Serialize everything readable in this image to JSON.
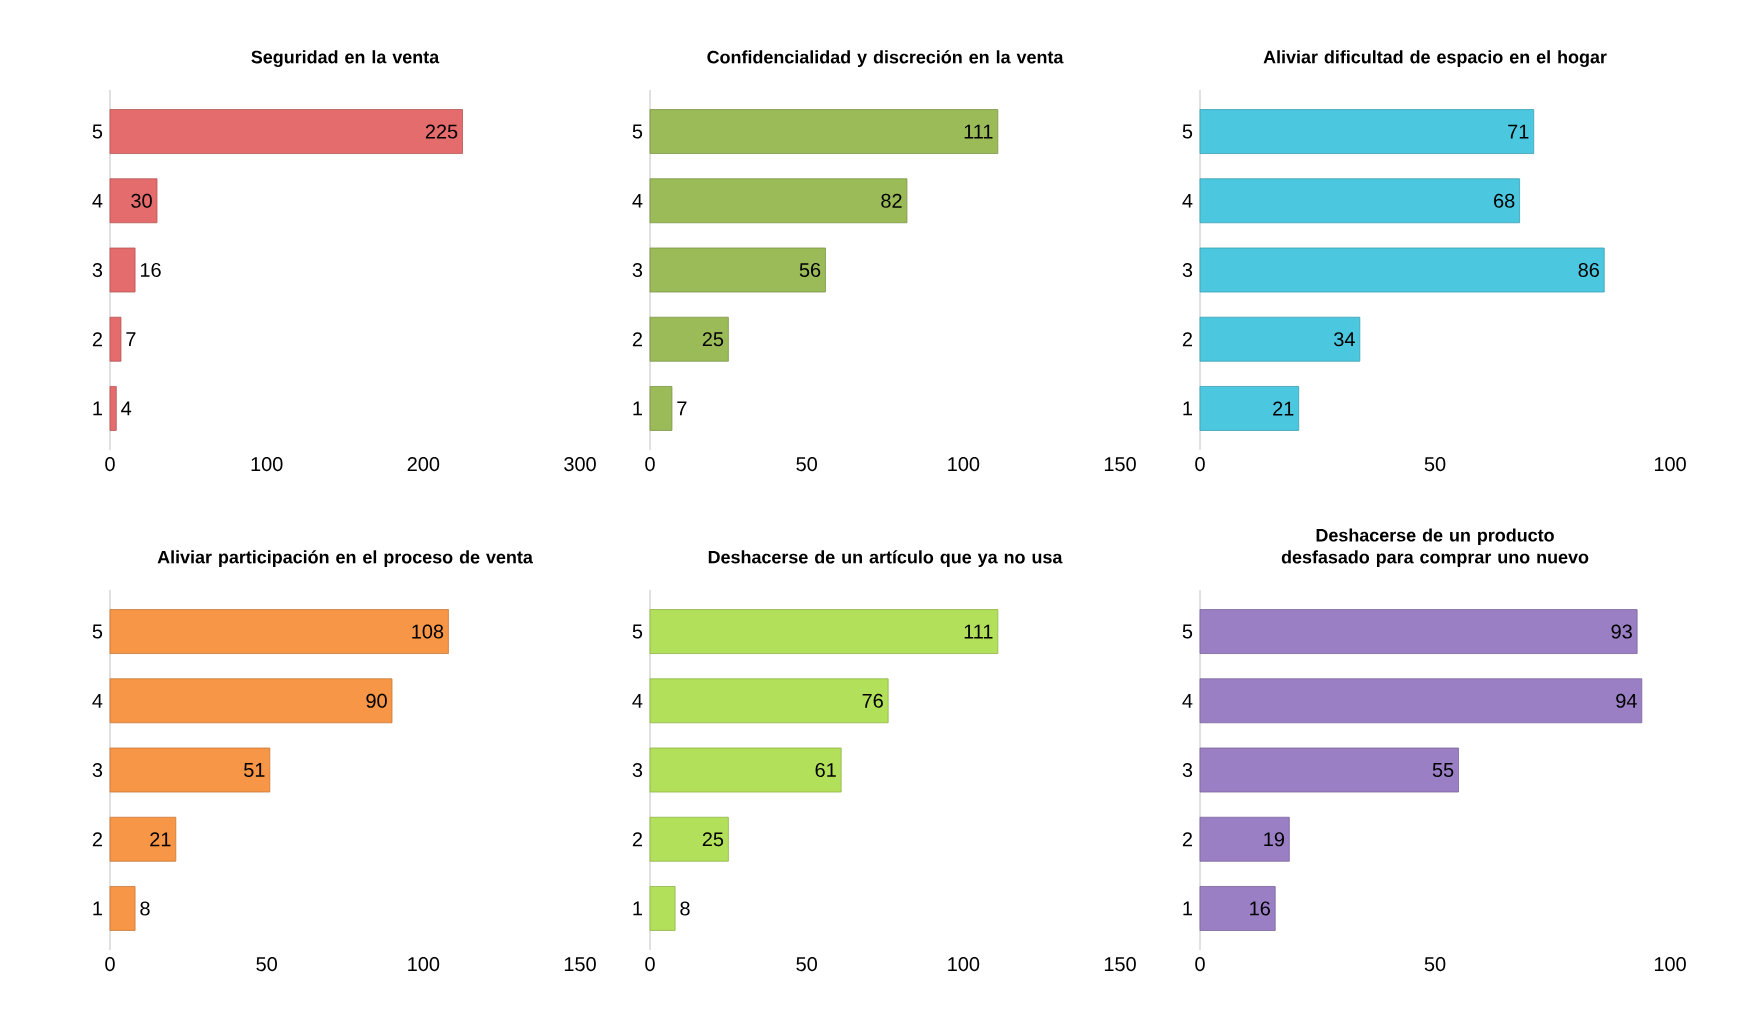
{
  "chart_data": [
    {
      "type": "bar",
      "orientation": "horizontal",
      "title": "Seguridad en la venta",
      "categories": [
        "5",
        "4",
        "3",
        "2",
        "1"
      ],
      "values": [
        225,
        30,
        16,
        7,
        4
      ],
      "color": "#e46c6c",
      "xlim": [
        0,
        300
      ],
      "xticks": [
        0,
        100,
        200,
        300
      ],
      "data_labels": true
    },
    {
      "type": "bar",
      "orientation": "horizontal",
      "title": "Confidencialidad y discreción en la venta",
      "categories": [
        "5",
        "4",
        "3",
        "2",
        "1"
      ],
      "values": [
        111,
        82,
        56,
        25,
        7
      ],
      "color": "#9bbb59",
      "xlim": [
        0,
        150
      ],
      "xticks": [
        0,
        50,
        100,
        150
      ],
      "data_labels": true
    },
    {
      "type": "bar",
      "orientation": "horizontal",
      "title": "Aliviar dificultad de espacio en el hogar",
      "categories": [
        "5",
        "4",
        "3",
        "2",
        "1"
      ],
      "values": [
        71,
        68,
        86,
        34,
        21
      ],
      "color": "#4bc8e0",
      "xlim": [
        0,
        100
      ],
      "xticks": [
        0,
        50,
        100
      ],
      "data_labels": true
    },
    {
      "type": "bar",
      "orientation": "horizontal",
      "title": "Aliviar participación en el proceso de venta",
      "categories": [
        "5",
        "4",
        "3",
        "2",
        "1"
      ],
      "values": [
        108,
        90,
        51,
        21,
        8
      ],
      "color": "#f79646",
      "xlim": [
        0,
        150
      ],
      "xticks": [
        0,
        50,
        100,
        150
      ],
      "data_labels": true
    },
    {
      "type": "bar",
      "orientation": "horizontal",
      "title": "Deshacerse de un artículo que ya no usa",
      "categories": [
        "5",
        "4",
        "3",
        "2",
        "1"
      ],
      "values": [
        111,
        76,
        61,
        25,
        8
      ],
      "color": "#b3e05a",
      "xlim": [
        0,
        150
      ],
      "xticks": [
        0,
        50,
        100,
        150
      ],
      "data_labels": true
    },
    {
      "type": "bar",
      "orientation": "horizontal",
      "title": "Deshacerse de un producto desfasado para comprar uno nuevo",
      "categories": [
        "5",
        "4",
        "3",
        "2",
        "1"
      ],
      "values": [
        93,
        94,
        55,
        19,
        16
      ],
      "color": "#9a7fc4",
      "xlim": [
        0,
        100
      ],
      "xticks": [
        0,
        50,
        100
      ],
      "data_labels": true
    }
  ]
}
